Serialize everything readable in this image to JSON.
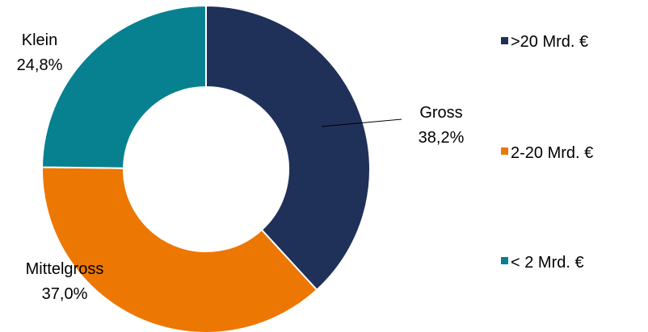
{
  "chart_data": {
    "type": "pie",
    "donut": true,
    "slices": [
      {
        "name": ">20 Mrd. €",
        "category": "Gross",
        "value": 38.2,
        "value_label": "38,2%",
        "color": "#1f3059"
      },
      {
        "name": "2-20 Mrd. €",
        "category": "Mittelgross",
        "value": 37.0,
        "value_label": "37,0%",
        "color": "#ed7703"
      },
      {
        "name": "< 2 Mrd. €",
        "category": "Klein",
        "value": 24.8,
        "value_label": "24,8%",
        "color": "#07818f"
      }
    ],
    "legend_position": "right",
    "start_angle": "12 o'clock, clockwise"
  }
}
